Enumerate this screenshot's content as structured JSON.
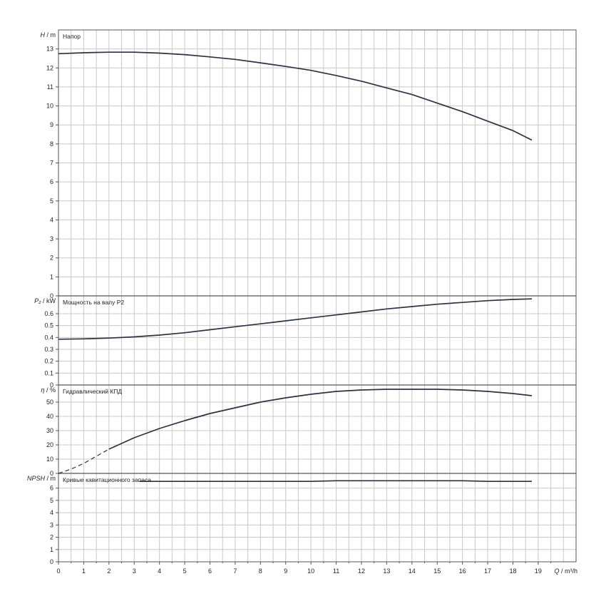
{
  "chart_data": {
    "type": "line",
    "x_axis": {
      "label_q": "Q",
      "label_unit": "/ m³/h",
      "ticks": [
        "0",
        "1",
        "2",
        "3",
        "4",
        "5",
        "6",
        "7",
        "8",
        "9",
        "10",
        "11",
        "12",
        "13",
        "14",
        "15",
        "16",
        "17",
        "18",
        "19"
      ],
      "range": [
        0,
        20.5
      ]
    },
    "grid": true,
    "panels": [
      {
        "key": "head",
        "title": "Напор",
        "ylabel_sym": "H",
        "ylabel_unit": "/ m",
        "yticks": [
          "0",
          "1",
          "2",
          "3",
          "4",
          "5",
          "6",
          "7",
          "8",
          "9",
          "10",
          "11",
          "12",
          "13"
        ],
        "ylim": [
          0,
          14
        ],
        "series": [
          {
            "x": [
              0,
              1,
              2,
              3,
              4,
              5,
              6,
              7,
              8,
              9,
              10,
              11,
              12,
              13,
              14,
              15,
              16,
              17,
              18,
              18.75
            ],
            "y": [
              12.75,
              12.8,
              12.83,
              12.83,
              12.78,
              12.7,
              12.58,
              12.45,
              12.27,
              12.08,
              11.87,
              11.6,
              11.3,
              10.95,
              10.6,
              10.15,
              9.7,
              9.2,
              8.7,
              8.2
            ]
          }
        ]
      },
      {
        "key": "power",
        "title": "Мощность на валу P2",
        "ylabel_sym": "P₂",
        "ylabel_unit": "/ kW",
        "yticks": [
          "0",
          "0.1",
          "0.2",
          "0.3",
          "0.4",
          "0.5",
          "0.6"
        ],
        "ylim": [
          0,
          0.75
        ],
        "series": [
          {
            "x": [
              0,
              1,
              2,
              3,
              4,
              5,
              6,
              7,
              8,
              9,
              10,
              11,
              12,
              13,
              14,
              15,
              16,
              17,
              18,
              18.75
            ],
            "y": [
              0.385,
              0.388,
              0.395,
              0.405,
              0.42,
              0.44,
              0.465,
              0.49,
              0.515,
              0.54,
              0.565,
              0.59,
              0.615,
              0.64,
              0.66,
              0.68,
              0.695,
              0.71,
              0.72,
              0.725
            ]
          }
        ]
      },
      {
        "key": "efficiency",
        "title": "Гидравлический КПД",
        "ylabel_sym": "η",
        "ylabel_unit": "/ %",
        "yticks": [
          "0",
          "10",
          "20",
          "30",
          "40",
          "50"
        ],
        "ylim": [
          0,
          62
        ],
        "series": [
          {
            "x": [
              0,
              0.5,
              1,
              1.5,
              2
            ],
            "y": [
              0,
              3,
              7,
              12,
              17
            ],
            "style": "dashed"
          },
          {
            "x": [
              2,
              3,
              4,
              5,
              6,
              7,
              8,
              9,
              10,
              11,
              12,
              13,
              14,
              15,
              16,
              17,
              18,
              18.75
            ],
            "y": [
              17,
              25,
              31.5,
              37,
              42,
              46,
              50,
              53,
              55.5,
              57.5,
              58.5,
              59,
              59,
              59,
              58.5,
              57.5,
              56,
              54.5
            ]
          }
        ]
      },
      {
        "key": "npsh",
        "title": "Кривые кавитационного запаса",
        "ylabel_sym": "NPSH",
        "ylabel_unit": "/ m",
        "yticks": [
          "0",
          "1",
          "2",
          "3",
          "4",
          "5",
          "6"
        ],
        "ylim": [
          0,
          7.2
        ],
        "series": [
          {
            "x": [
              3.2,
              4,
              6,
              8,
              10,
              11,
              12,
              14,
              16,
              17,
              18,
              18.75
            ],
            "y": [
              6.55,
              6.55,
              6.55,
              6.55,
              6.55,
              6.6,
              6.6,
              6.6,
              6.6,
              6.55,
              6.55,
              6.55
            ]
          }
        ]
      }
    ]
  }
}
